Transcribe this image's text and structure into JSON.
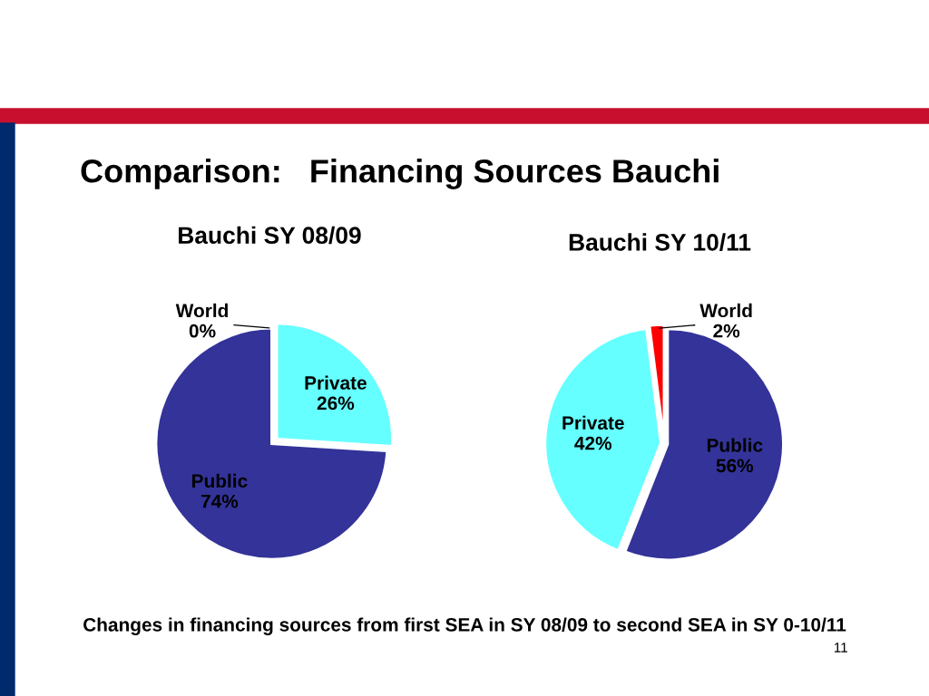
{
  "chart_data": [
    {
      "type": "pie",
      "title": "Comparison:   Financing Sources Bauchi",
      "subtitle": "Bauchi SY 08/09",
      "categories": [
        "Private",
        "Public",
        "World"
      ],
      "values": [
        26,
        74,
        0
      ],
      "value_labels": [
        "26%",
        "74%",
        "0%"
      ],
      "colors": [
        "#66ffff",
        "#333399",
        "#ff0000"
      ],
      "annotations": [
        "Changes in financing sources from first SEA in SY 08/09 to second SEA in SY 0-10/11"
      ]
    },
    {
      "type": "pie",
      "title": "Bauchi SY 10/11",
      "categories": [
        "Public",
        "Private",
        "World"
      ],
      "values": [
        56,
        42,
        2
      ],
      "value_labels": [
        "56%",
        "42%",
        "2%"
      ],
      "colors": [
        "#333399",
        "#66ffff",
        "#ff0000"
      ],
      "annotations": [
        "11"
      ]
    }
  ]
}
